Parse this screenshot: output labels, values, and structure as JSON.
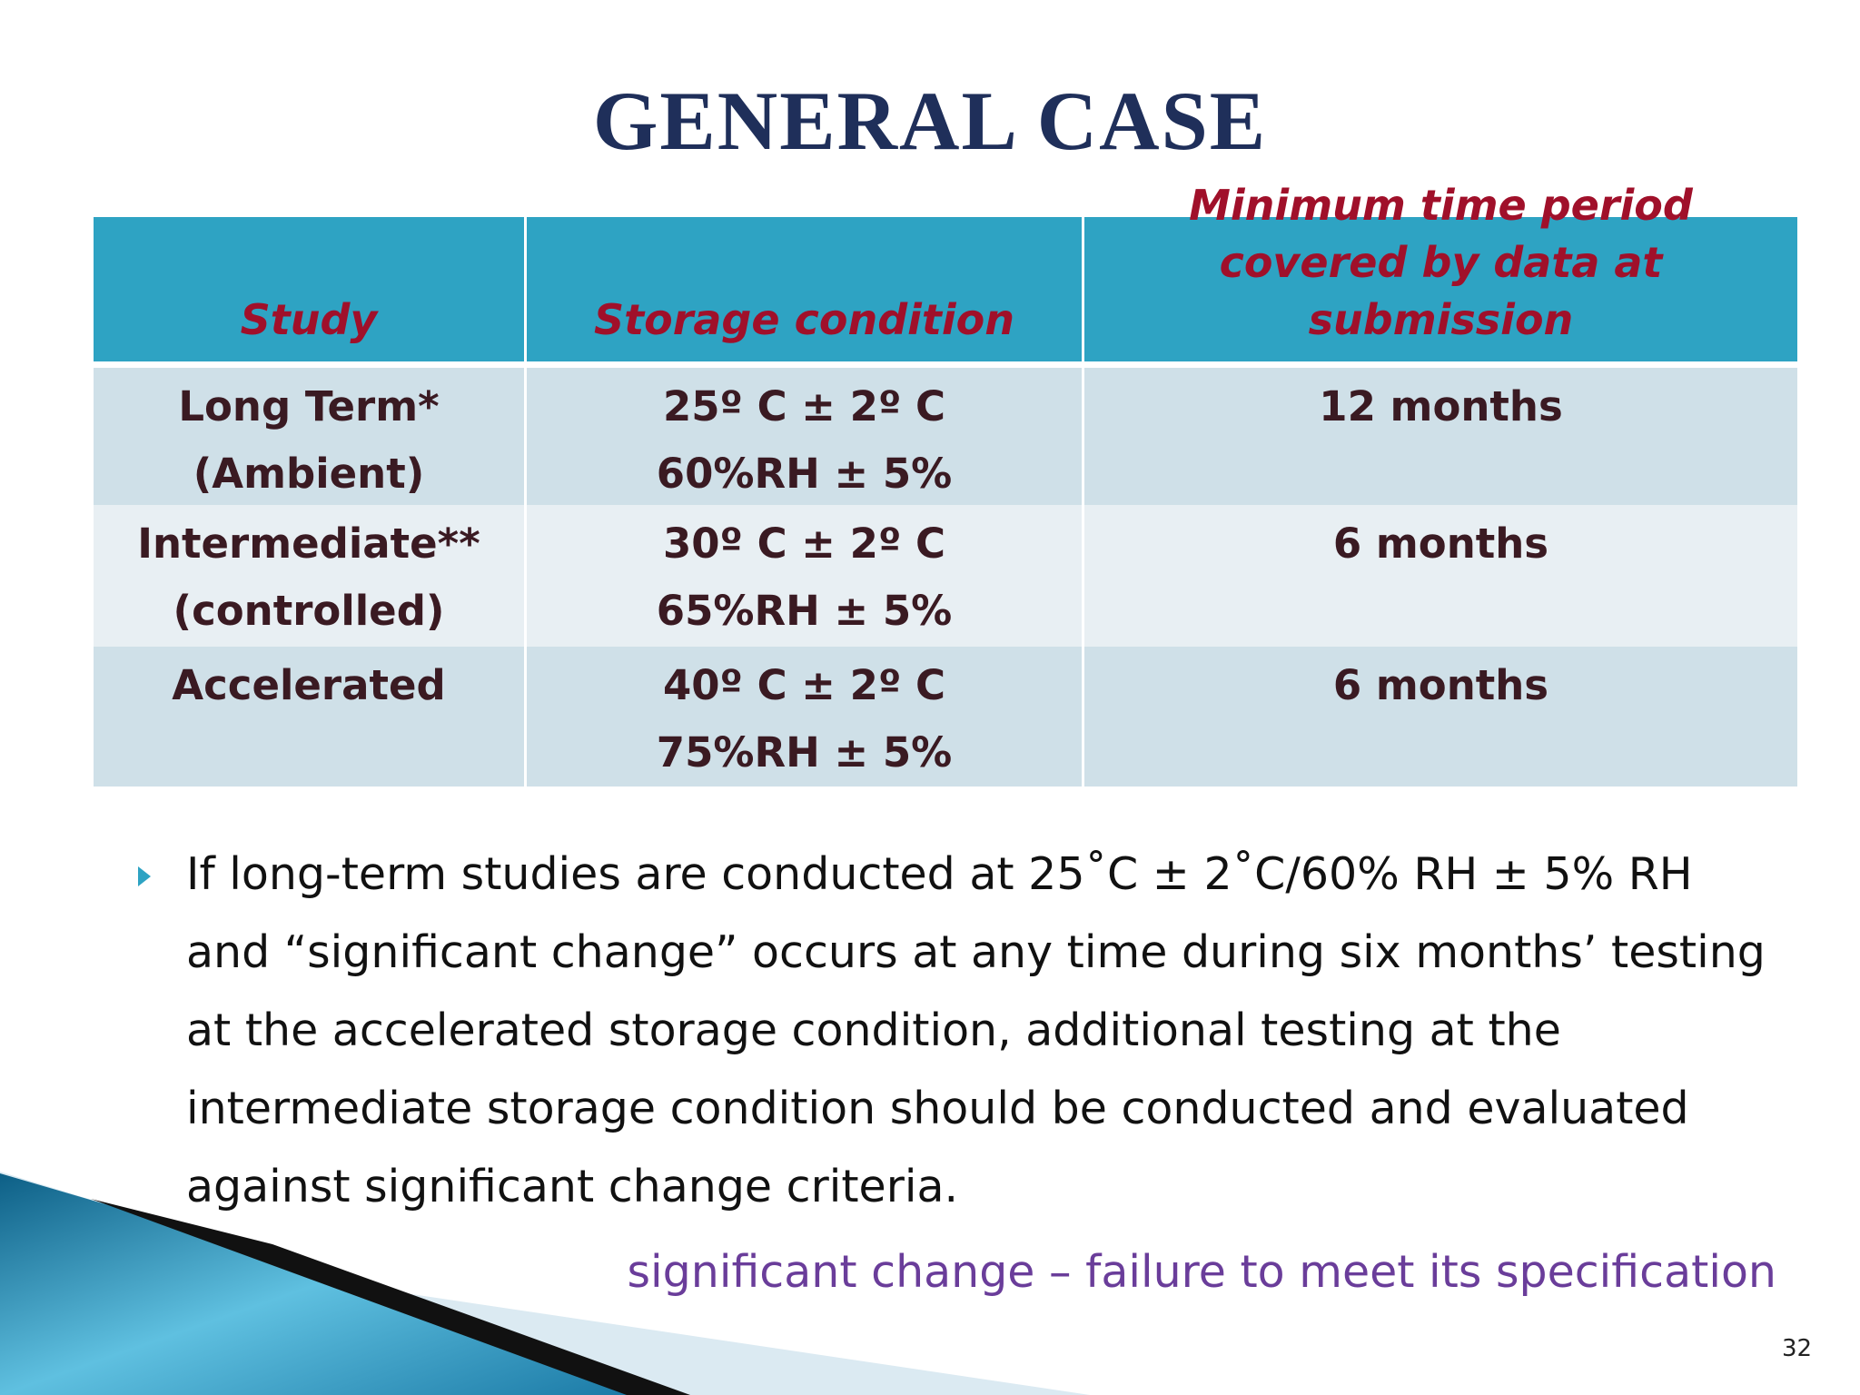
{
  "title": "GENERAL CASE",
  "table": {
    "header": [
      [
        "Study"
      ],
      [
        "Storage condition"
      ],
      [
        "Minimum time period",
        "covered by data at submission"
      ]
    ],
    "rows": [
      [
        [
          "Long Term*",
          "(Ambient)"
        ],
        [
          "25º C ±  2º C",
          "60%RH  ± 5%"
        ],
        [
          "12 months"
        ]
      ],
      [
        [
          "Intermediate**",
          "(controlled)"
        ],
        [
          "30º C ± 2º C",
          "65%RH  ± 5%"
        ],
        [
          "6 months"
        ]
      ],
      [
        [
          "Accelerated"
        ],
        [
          "40º C ±  2º C",
          "75%RH  ±  5%"
        ],
        [
          "6 months"
        ]
      ]
    ]
  },
  "bullet": [
    "If long-term studies are conducted at 25˚C ± 2˚C/60% RH ± 5% RH",
    "and “significant change” occurs at any time during six months’ testing",
    "at the accelerated storage condition, additional testing at the",
    "intermediate storage condition should be conducted and evaluated",
    "against significant change criteria."
  ],
  "note": "significant change – failure to meet its specification",
  "page_number": "32"
}
